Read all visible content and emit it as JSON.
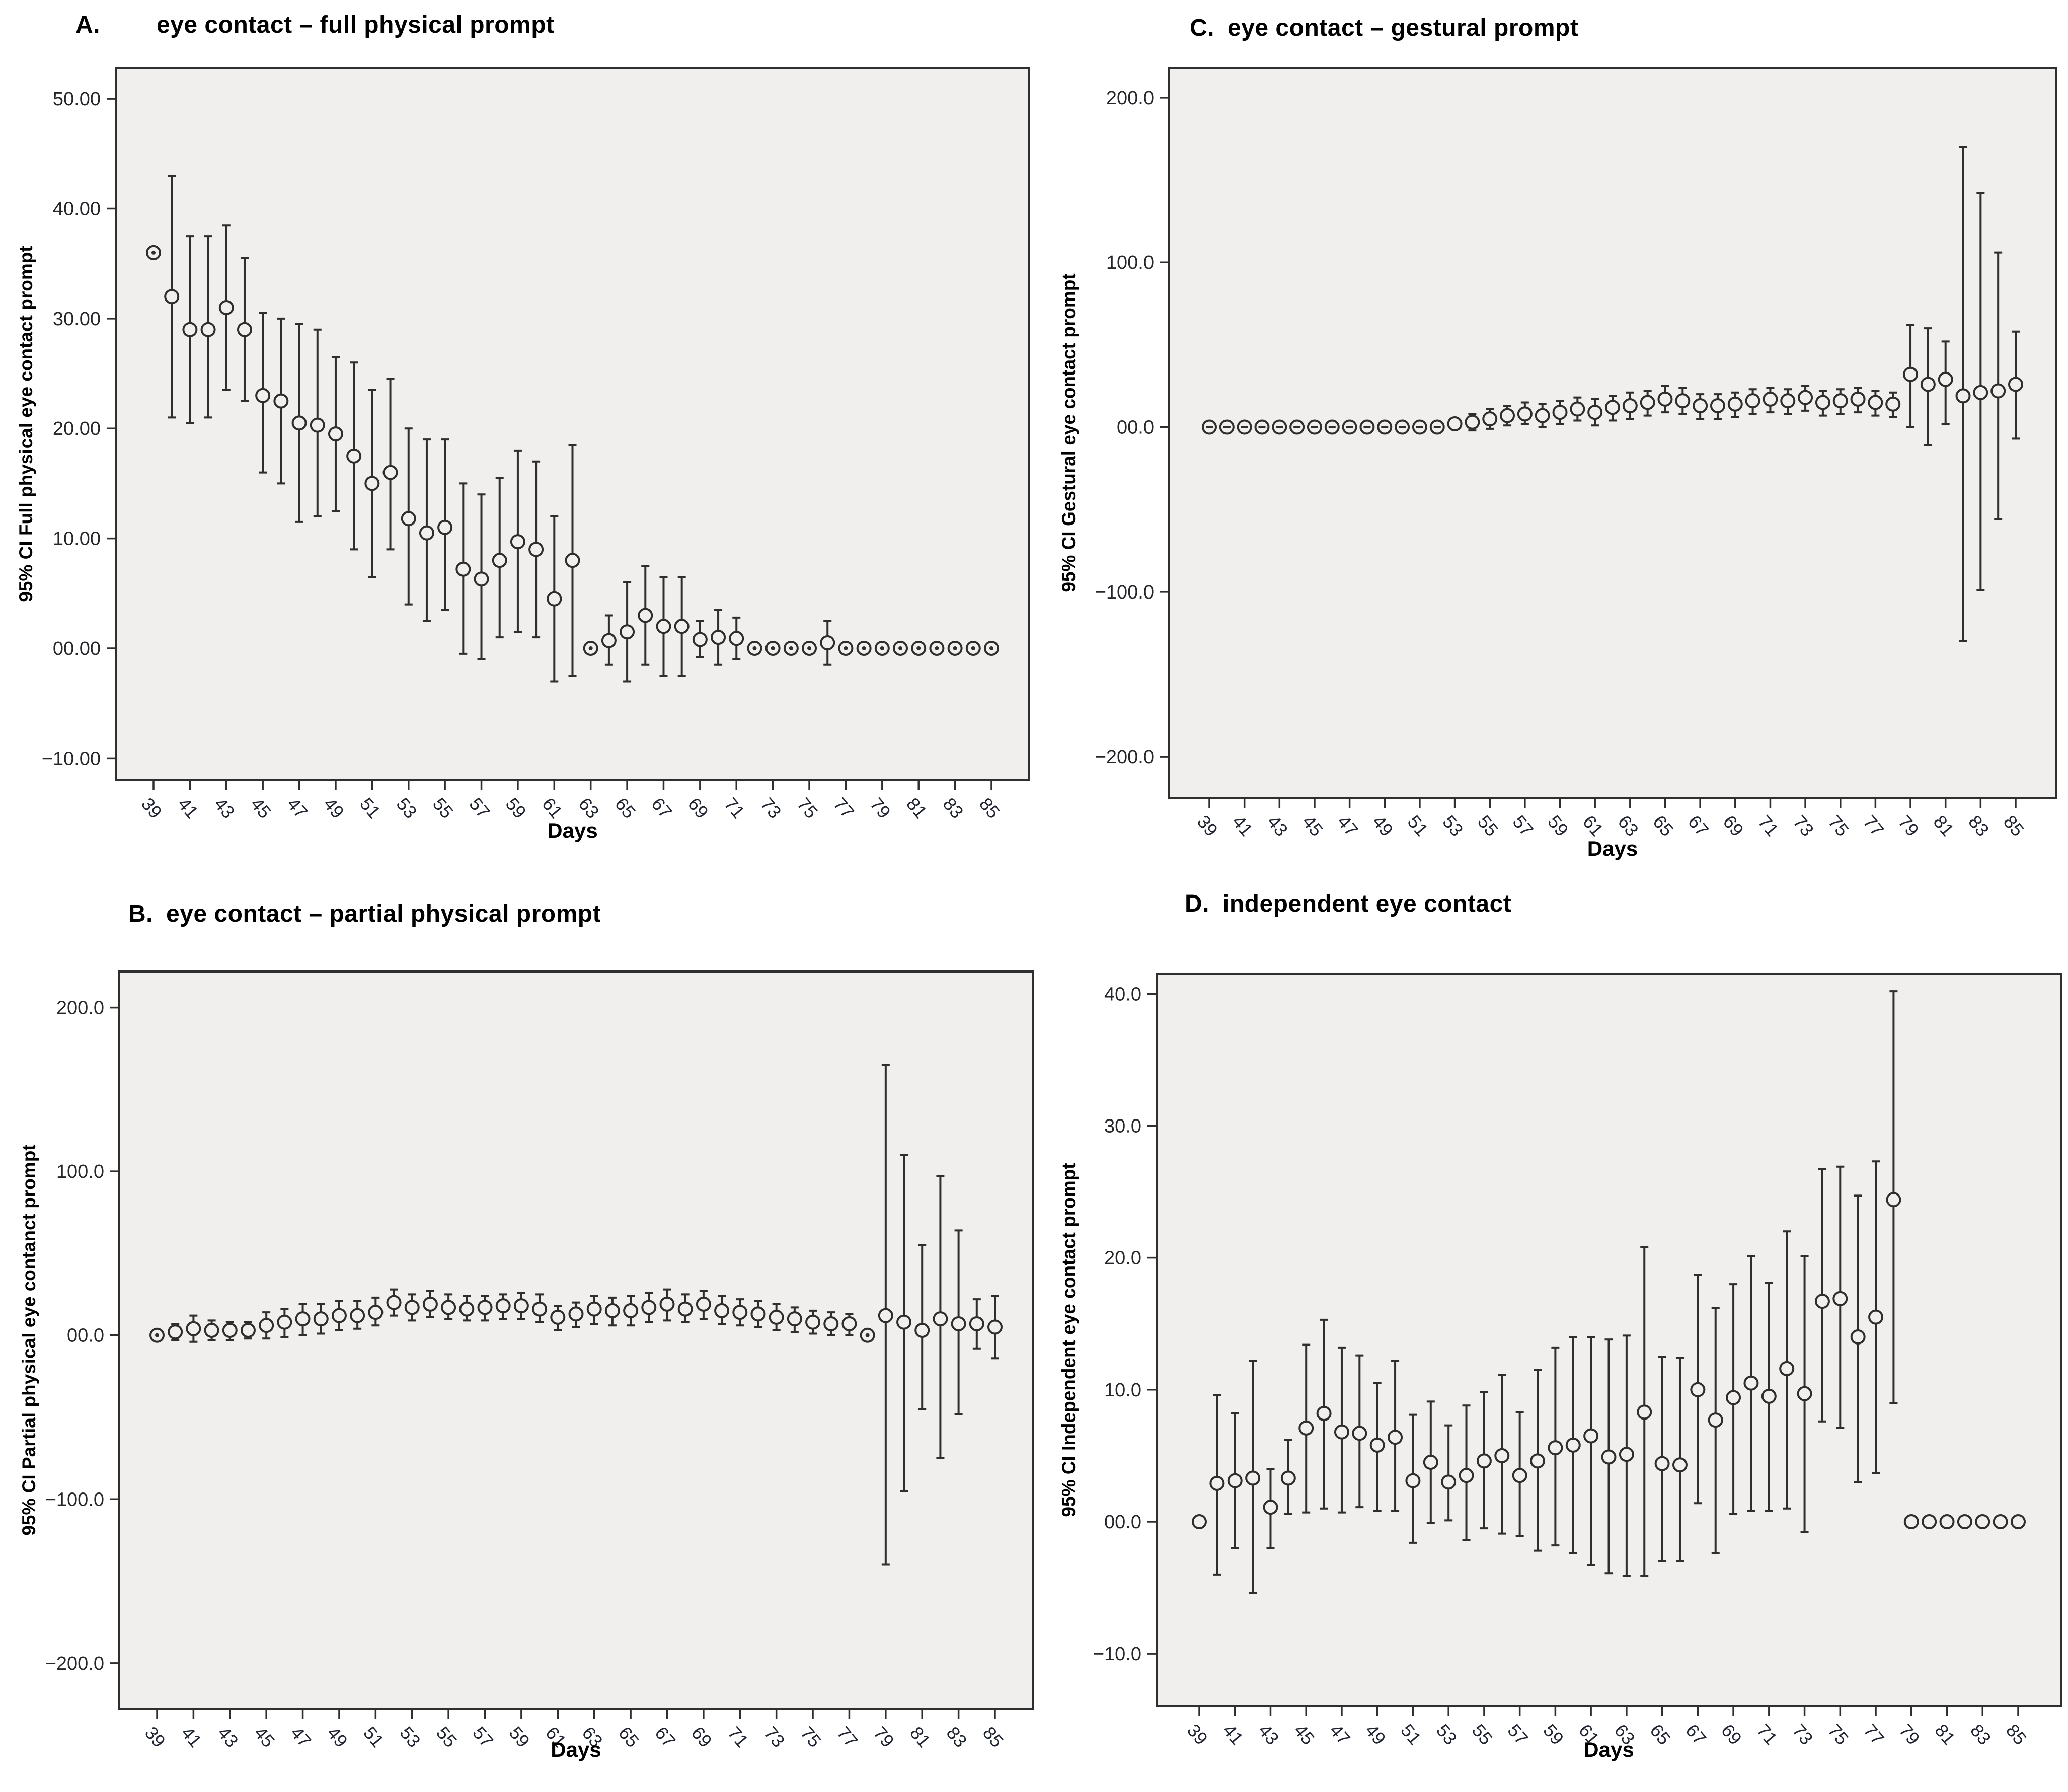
{
  "figure": {
    "xlabel": "Days",
    "x_tick_labels": [
      "39",
      "41",
      "43",
      "45",
      "47",
      "49",
      "51",
      "53",
      "55",
      "57",
      "59",
      "61",
      "63",
      "65",
      "67",
      "69",
      "71",
      "73",
      "75",
      "77",
      "79",
      "81",
      "83",
      "85"
    ]
  },
  "style": {
    "page_bg": "#ffffff",
    "plot_bg": "#f0efee",
    "frame": "#2f2f2f",
    "bar": "#2e2e2e",
    "marker_stroke": "#2e2e2e",
    "title_text": "#000000",
    "tick_text": "#26262b"
  },
  "chart_data": [
    {
      "panel_label": "A.",
      "title": "eye contact – full physical prompt",
      "type": "scatter",
      "subtype": "errorbar-95ci",
      "xlabel": "Days",
      "ylabel": "95% CI Full physical eye contact prompt",
      "ylim": [
        -12,
        52.8
      ],
      "grid": false,
      "legend": "none",
      "yticks": {
        "values": [
          50,
          40,
          30,
          20,
          10,
          0,
          -10
        ],
        "labels": [
          "50.00",
          "40.00",
          "30.00",
          "20.00",
          "10.00",
          "00.00",
          "−10.00"
        ]
      },
      "x_tick_labels": [
        "39",
        "41",
        "43",
        "45",
        "47",
        "49",
        "51",
        "53",
        "55",
        "57",
        "59",
        "61",
        "63",
        "65",
        "67",
        "69",
        "71",
        "73",
        "75",
        "77",
        "79",
        "81",
        "83",
        "85"
      ],
      "zero_marker": "dot",
      "days": [
        39,
        40,
        41,
        42,
        43,
        44,
        45,
        46,
        47,
        48,
        49,
        50,
        51,
        52,
        53,
        54,
        55,
        56,
        57,
        58,
        59,
        60,
        61,
        62,
        63,
        64,
        65,
        66,
        67,
        68,
        69,
        70,
        71,
        72,
        73,
        74,
        75,
        76,
        77,
        78,
        79,
        80,
        81,
        82,
        83,
        84,
        85
      ],
      "mean": [
        36,
        32,
        29,
        29,
        31,
        29,
        23,
        22.5,
        20.5,
        20.3,
        19.5,
        17.5,
        15,
        16,
        11.8,
        10.5,
        11,
        7.2,
        6.3,
        8,
        9.7,
        9,
        4.5,
        8,
        0,
        0.7,
        1.5,
        3,
        2,
        2,
        0.8,
        1,
        0.9,
        0,
        0,
        0,
        0,
        0.5,
        0,
        0,
        0,
        0,
        0,
        0,
        0,
        0,
        0
      ],
      "lo": [
        36,
        21,
        20.5,
        21,
        23.5,
        22.5,
        16,
        15,
        11.5,
        12,
        12.5,
        9,
        6.5,
        9,
        4,
        2.5,
        3.5,
        -0.5,
        -1,
        1,
        1.5,
        1,
        -3,
        -2.5,
        0,
        -1.5,
        -3,
        -1.5,
        -2.5,
        -2.5,
        -0.8,
        -1.5,
        -1,
        0,
        0,
        0,
        0,
        -1.5,
        0,
        0,
        0,
        0,
        0,
        0,
        0,
        0,
        0
      ],
      "hi": [
        36,
        43,
        37.5,
        37.5,
        38.5,
        35.5,
        30.5,
        30,
        29.5,
        29,
        26.5,
        26,
        23.5,
        24.5,
        20,
        19,
        19,
        15,
        14,
        15.5,
        18,
        17,
        12,
        18.5,
        0,
        3,
        6,
        7.5,
        6.5,
        6.5,
        2.5,
        3.5,
        2.8,
        0,
        0,
        0,
        0,
        2.5,
        0,
        0,
        0,
        0,
        0,
        0,
        0,
        0,
        0
      ]
    },
    {
      "panel_label": "B.",
      "title": "eye contact – partial physical prompt",
      "type": "scatter",
      "subtype": "errorbar-95ci",
      "xlabel": "Days",
      "ylabel": "95% CI Partial physical eye contanct prompt",
      "ylim": [
        -228,
        222
      ],
      "grid": false,
      "legend": "none",
      "yticks": {
        "values": [
          200,
          100,
          0,
          -100,
          -200
        ],
        "labels": [
          "200.0",
          "100.0",
          "00.0",
          "−100.0",
          "−200.0"
        ]
      },
      "x_tick_labels": [
        "39",
        "41",
        "43",
        "45",
        "47",
        "49",
        "51",
        "53",
        "55",
        "57",
        "59",
        "61",
        "63",
        "65",
        "67",
        "69",
        "71",
        "73",
        "75",
        "77",
        "79",
        "81",
        "83",
        "85"
      ],
      "zero_marker": "dot",
      "days": [
        39,
        40,
        41,
        42,
        43,
        44,
        45,
        46,
        47,
        48,
        49,
        50,
        51,
        52,
        53,
        54,
        55,
        56,
        57,
        58,
        59,
        60,
        61,
        62,
        63,
        64,
        65,
        66,
        67,
        68,
        69,
        70,
        71,
        72,
        73,
        74,
        75,
        76,
        77,
        78,
        79,
        80,
        81,
        82,
        83,
        84,
        85
      ],
      "mean": [
        0,
        2,
        4,
        3,
        3,
        3,
        6,
        8,
        10,
        10,
        12,
        12,
        14,
        20,
        17,
        19,
        17,
        16,
        17,
        18,
        18,
        16,
        11,
        13,
        16,
        15,
        15,
        17,
        19,
        16,
        19,
        15,
        14,
        13,
        11,
        10,
        8,
        7,
        7,
        0,
        12,
        8,
        3,
        10,
        7,
        7,
        5
      ],
      "lo": [
        0,
        -3,
        -4,
        -3,
        -3,
        -2,
        -2,
        -1,
        0,
        1,
        3,
        4,
        6,
        12,
        9,
        11,
        10,
        9,
        9,
        10,
        10,
        8,
        3,
        5,
        7,
        6,
        6,
        8,
        9,
        8,
        10,
        7,
        6,
        5,
        3,
        2,
        1,
        0,
        0,
        0,
        -140,
        -95,
        -45,
        -75,
        -48,
        -8,
        -14
      ],
      "hi": [
        0,
        7,
        12,
        9,
        8,
        8,
        14,
        16,
        19,
        19,
        21,
        21,
        23,
        28,
        25,
        27,
        25,
        24,
        24,
        25,
        26,
        25,
        18,
        20,
        24,
        23,
        24,
        26,
        28,
        25,
        27,
        24,
        22,
        21,
        19,
        17,
        15,
        14,
        13,
        0,
        165,
        110,
        55,
        97,
        64,
        22,
        24
      ]
    },
    {
      "panel_label": "C.",
      "title": "eye contact – gestural prompt",
      "type": "scatter",
      "subtype": "errorbar-95ci",
      "xlabel": "Days",
      "ylabel": "95% CI Gestural eye contact prompt",
      "ylim": [
        -225,
        218
      ],
      "grid": false,
      "legend": "none",
      "yticks": {
        "values": [
          200,
          100,
          0,
          -100,
          -200
        ],
        "labels": [
          "200.0",
          "100.0",
          "00.0",
          "−100.0",
          "−200.0"
        ]
      },
      "x_tick_labels": [
        "39",
        "41",
        "43",
        "45",
        "47",
        "49",
        "51",
        "53",
        "55",
        "57",
        "59",
        "61",
        "63",
        "65",
        "67",
        "69",
        "71",
        "73",
        "75",
        "77",
        "79",
        "81",
        "83",
        "85"
      ],
      "zero_marker": "dash",
      "days": [
        39,
        40,
        41,
        42,
        43,
        44,
        45,
        46,
        47,
        48,
        49,
        50,
        51,
        52,
        53,
        54,
        55,
        56,
        57,
        58,
        59,
        60,
        61,
        62,
        63,
        64,
        65,
        66,
        67,
        68,
        69,
        70,
        71,
        72,
        73,
        74,
        75,
        76,
        77,
        78,
        79,
        80,
        81,
        82,
        83,
        84,
        85
      ],
      "mean": [
        0,
        0,
        0,
        0,
        0,
        0,
        0,
        0,
        0,
        0,
        0,
        0,
        0,
        0,
        2,
        3,
        5,
        7,
        8,
        7,
        9,
        11,
        9,
        12,
        13,
        15,
        17,
        16,
        13,
        13,
        14,
        16,
        17,
        16,
        18,
        15,
        16,
        17,
        15,
        14,
        32,
        26,
        29,
        19,
        21,
        22,
        26
      ],
      "lo": [
        0,
        0,
        0,
        0,
        0,
        0,
        0,
        0,
        0,
        0,
        0,
        0,
        0,
        0,
        -1,
        -2,
        -1,
        1,
        2,
        0,
        2,
        4,
        1,
        4,
        5,
        7,
        9,
        8,
        5,
        5,
        6,
        8,
        9,
        8,
        10,
        7,
        8,
        9,
        7,
        6,
        0,
        -11,
        2,
        -130,
        -99,
        -56,
        -7
      ],
      "hi": [
        0,
        0,
        0,
        0,
        0,
        0,
        0,
        0,
        0,
        0,
        0,
        0,
        0,
        0,
        5,
        8,
        11,
        13,
        15,
        14,
        16,
        18,
        17,
        19,
        21,
        22,
        25,
        24,
        20,
        20,
        21,
        23,
        24,
        23,
        25,
        22,
        23,
        24,
        22,
        21,
        62,
        60,
        52,
        170,
        142,
        106,
        58
      ]
    },
    {
      "panel_label": "D.",
      "title": "independent eye contact",
      "type": "scatter",
      "subtype": "errorbar-95ci",
      "xlabel": "Days",
      "ylabel": "95% CI Independent eye contact prompt",
      "ylim": [
        -14,
        41.5
      ],
      "grid": false,
      "legend": "none",
      "yticks": {
        "values": [
          40,
          30,
          20,
          10,
          0,
          -10
        ],
        "labels": [
          "40.0",
          "30.0",
          "20.0",
          "10.0",
          "00.0",
          "−10.0"
        ]
      },
      "x_tick_labels": [
        "39",
        "41",
        "43",
        "45",
        "47",
        "49",
        "51",
        "53",
        "55",
        "57",
        "59",
        "61",
        "63",
        "65",
        "67",
        "69",
        "71",
        "73",
        "75",
        "77",
        "79",
        "81",
        "83",
        "85"
      ],
      "zero_marker": "none",
      "days": [
        39,
        40,
        41,
        42,
        43,
        44,
        45,
        46,
        47,
        48,
        49,
        50,
        51,
        52,
        53,
        54,
        55,
        56,
        57,
        58,
        59,
        60,
        61,
        62,
        63,
        64,
        65,
        66,
        67,
        68,
        69,
        70,
        71,
        72,
        73,
        74,
        75,
        76,
        77,
        78,
        79,
        80,
        81,
        82,
        83,
        84,
        85
      ],
      "mean": [
        0,
        2.9,
        3.1,
        3.3,
        1.1,
        3.3,
        7.1,
        8.2,
        6.8,
        6.7,
        5.8,
        6.4,
        3.1,
        4.5,
        3,
        3.5,
        4.6,
        5,
        3.5,
        4.6,
        5.6,
        5.8,
        6.5,
        4.9,
        5.1,
        8.3,
        4.4,
        4.3,
        10,
        7.7,
        9.4,
        10.5,
        9.5,
        11.6,
        9.7,
        16.7,
        16.9,
        14,
        15.5,
        24.4,
        0,
        0,
        0,
        0,
        0,
        0,
        0
      ],
      "lo": [
        0,
        -4,
        -2,
        -5.4,
        -2,
        0.6,
        0.7,
        1,
        0.7,
        1.1,
        0.8,
        0.8,
        -1.6,
        -0.1,
        0.1,
        -1.4,
        -0.5,
        -0.9,
        -1.1,
        -2.2,
        -1.8,
        -2.4,
        -3.3,
        -3.9,
        -4.1,
        -4.1,
        -3,
        -3,
        1.4,
        -2.4,
        0.6,
        0.8,
        0.8,
        1,
        -0.8,
        7.6,
        7.1,
        3,
        3.7,
        9,
        0,
        0,
        0,
        0,
        0,
        0,
        0
      ],
      "hi": [
        0,
        9.6,
        8.2,
        12.2,
        4,
        6.2,
        13.4,
        15.3,
        13.2,
        12.6,
        10.5,
        12.2,
        8.1,
        9.1,
        7.3,
        8.8,
        9.8,
        11.1,
        8.3,
        11.5,
        13.2,
        14,
        14,
        13.8,
        14.1,
        20.8,
        12.5,
        12.4,
        18.7,
        16.2,
        18,
        20.1,
        18.1,
        22,
        20.1,
        26.7,
        26.9,
        24.7,
        27.3,
        40.2,
        0,
        0,
        0,
        0,
        0,
        0,
        0
      ]
    }
  ]
}
